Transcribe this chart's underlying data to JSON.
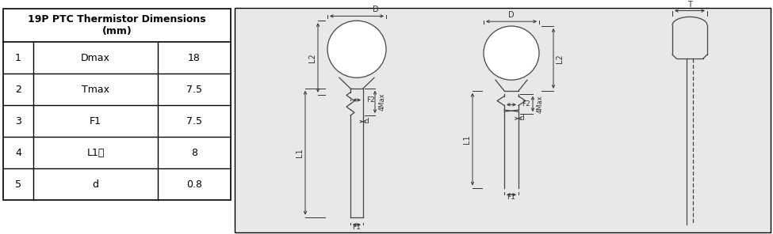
{
  "title": "19P PTC Thermistor Dimensions\n(mm)",
  "table_rows": [
    [
      "1",
      "Dmax",
      "18"
    ],
    [
      "2",
      "Tmax",
      "7.5"
    ],
    [
      "3",
      "F1",
      "7.5"
    ],
    [
      "4",
      "L1短",
      "8"
    ],
    [
      "5",
      "d",
      "0.8"
    ]
  ],
  "bg_color": "#ffffff",
  "border_color": "#000000",
  "diagram_bg": "#e8e8e8",
  "text_color": "#000000",
  "line_color": "#444444",
  "dim_color": "#333333"
}
